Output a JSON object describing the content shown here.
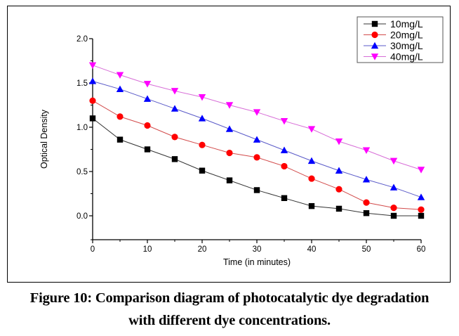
{
  "caption": {
    "line1": "Figure 10: Comparison diagram of photocatalytic dye degradation",
    "line2": "with different dye concentrations."
  },
  "chart_data": {
    "type": "line",
    "title": "",
    "xlabel": "Time (in minutes)",
    "ylabel": "Optical Density",
    "xlim": [
      0,
      60
    ],
    "ylim": [
      -0.27,
      2.0
    ],
    "x_ticks": [
      0,
      10,
      20,
      30,
      40,
      50,
      60
    ],
    "x_tick_labels": [
      "0",
      "10",
      "20",
      "30",
      "40",
      "50",
      "60"
    ],
    "x_minor_ticks": [
      5,
      15,
      25,
      35,
      45,
      55
    ],
    "y_ticks": [
      0.0,
      0.5,
      1.0,
      1.5,
      2.0
    ],
    "y_tick_labels": [
      "0.0",
      "0.5",
      "1.0",
      "1.5",
      "2.0"
    ],
    "y_minor_ticks": [
      0.25,
      0.75,
      1.25,
      1.75
    ],
    "grid": false,
    "legend_position": "top-right",
    "x": [
      0,
      5,
      10,
      15,
      20,
      25,
      30,
      35,
      40,
      45,
      50,
      55,
      60
    ],
    "series": [
      {
        "name": "10mg/L",
        "color": "#000000",
        "line_color": "#333333",
        "marker": "square",
        "values": [
          1.1,
          0.86,
          0.75,
          0.64,
          0.51,
          0.4,
          0.29,
          0.2,
          0.11,
          0.08,
          0.03,
          0.0,
          0.0
        ]
      },
      {
        "name": "20mg/L",
        "color": "#ff0000",
        "line_color": "#d24b4b",
        "marker": "circle",
        "values": [
          1.3,
          1.12,
          1.02,
          0.89,
          0.8,
          0.71,
          0.66,
          0.56,
          0.42,
          0.3,
          0.15,
          0.09,
          0.07
        ]
      },
      {
        "name": "30mg/L",
        "color": "#0000ff",
        "line_color": "#5a5ac8",
        "marker": "triangle-up",
        "values": [
          1.52,
          1.43,
          1.32,
          1.21,
          1.1,
          0.98,
          0.86,
          0.74,
          0.62,
          0.51,
          0.41,
          0.32,
          0.21
        ]
      },
      {
        "name": "40mg/L",
        "color": "#ff00ff",
        "line_color": "#d76ed7",
        "marker": "triangle-down",
        "values": [
          1.7,
          1.59,
          1.49,
          1.41,
          1.34,
          1.25,
          1.17,
          1.07,
          0.98,
          0.84,
          0.74,
          0.62,
          0.52
        ]
      }
    ]
  }
}
